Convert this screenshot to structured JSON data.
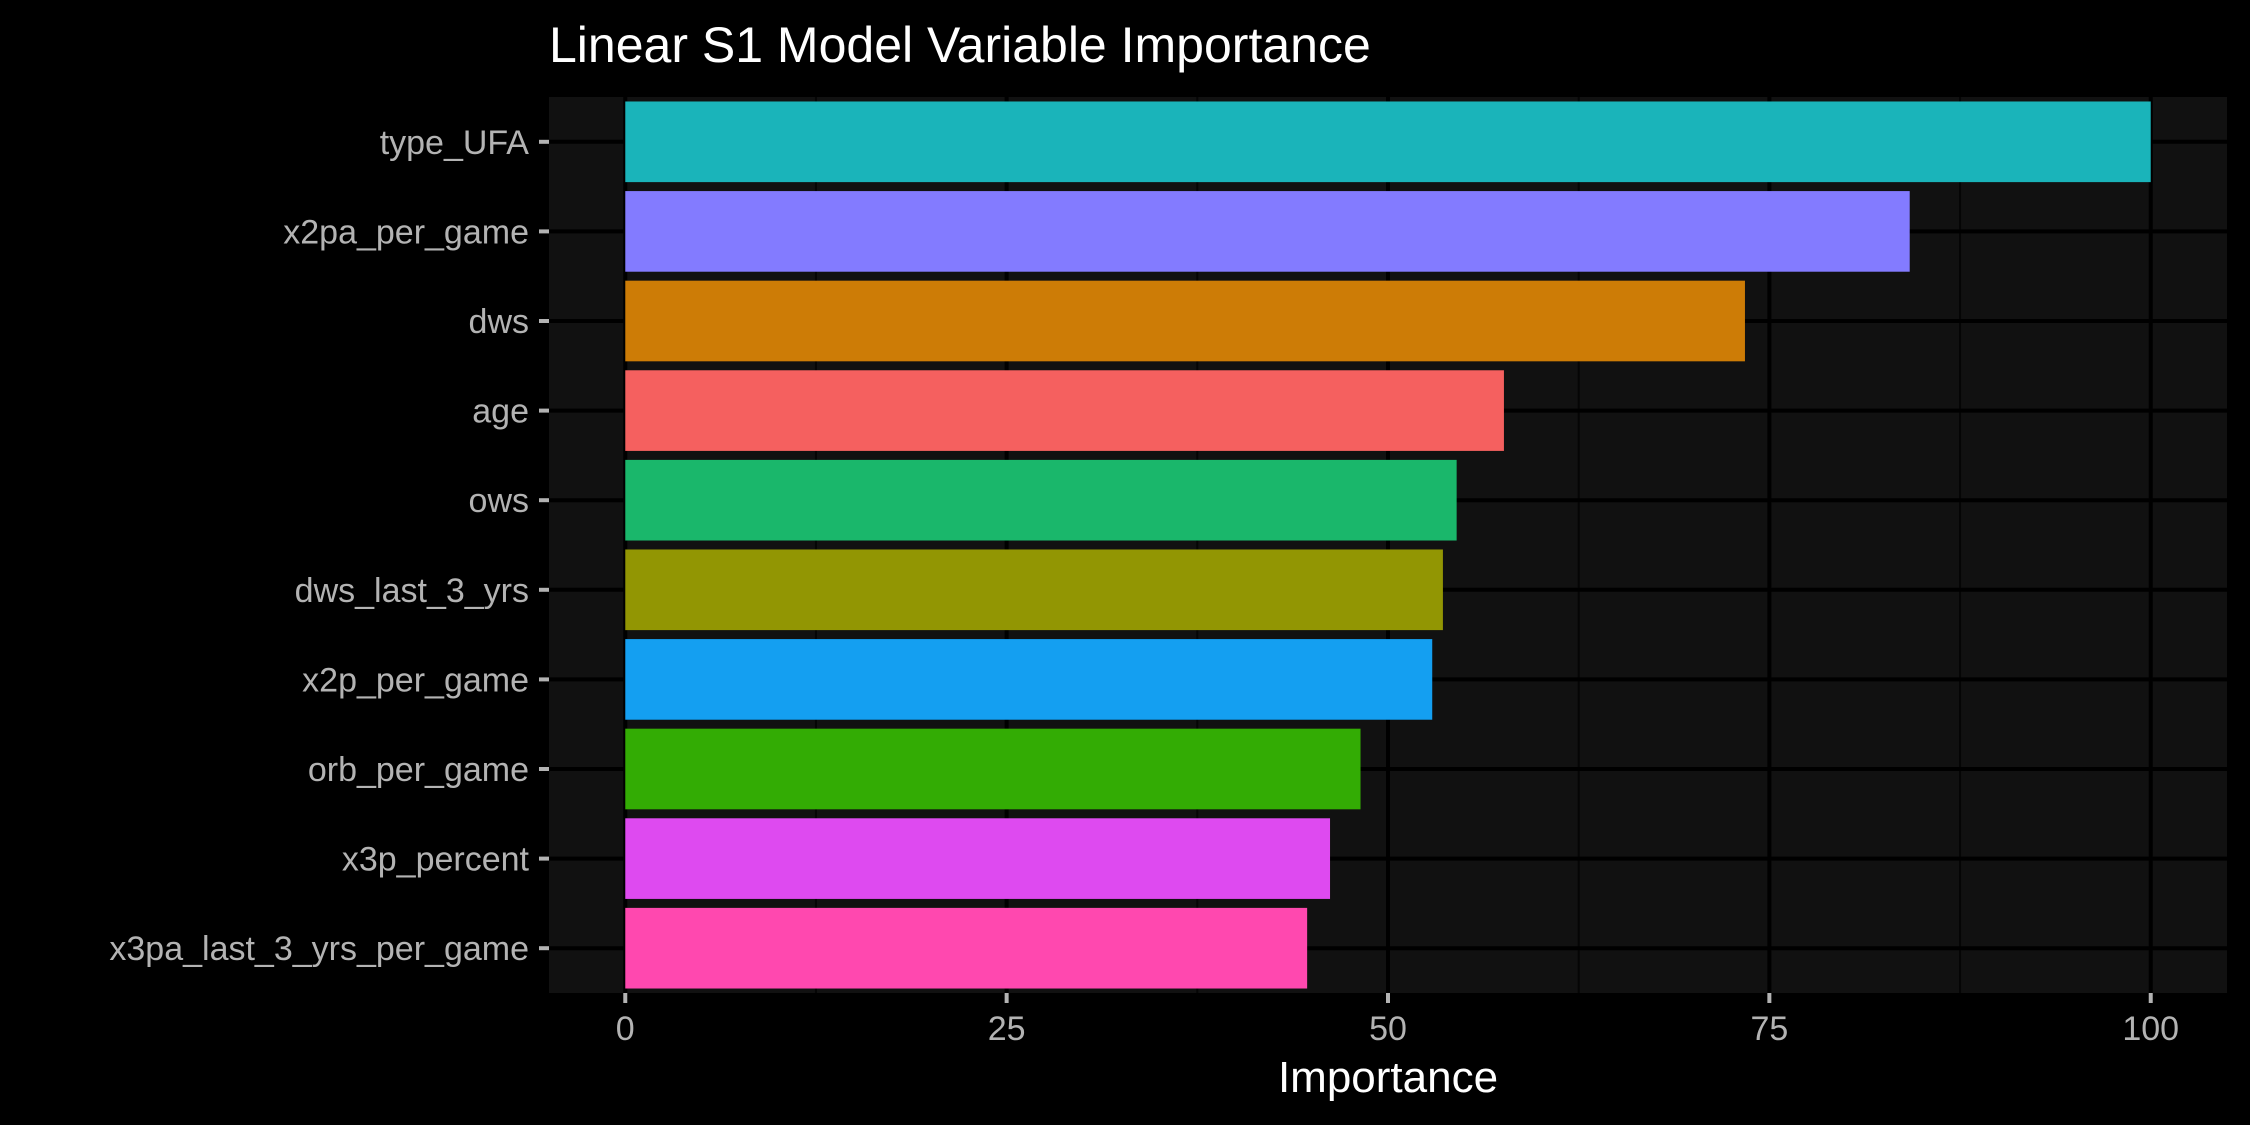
{
  "chart_data": {
    "type": "bar",
    "orientation": "horizontal",
    "title": "Linear S1 Model Variable Importance",
    "xlabel": "Importance",
    "ylabel": "",
    "categories": [
      "type_UFA",
      "x2pa_per_game",
      "dws",
      "age",
      "ows",
      "dws_last_3_yrs",
      "x2p_per_game",
      "orb_per_game",
      "x3p_percent",
      "x3pa_last_3_yrs_per_game"
    ],
    "values": [
      100,
      84.2,
      73.4,
      57.6,
      54.5,
      53.6,
      52.9,
      48.2,
      46.2,
      44.7
    ],
    "colors": [
      "#1AB4BA",
      "#837BFF",
      "#CD7C06",
      "#F5605F",
      "#1AB76B",
      "#929603",
      "#149FF1",
      "#33AC04",
      "#DE4AF0",
      "#FF48AF"
    ],
    "xlim": [
      -5,
      105
    ],
    "xticks": [
      0,
      25,
      50,
      75,
      100
    ],
    "grid": true,
    "legend": "none",
    "theme": {
      "background": "#000000",
      "panel": "#111111",
      "grid_major": "#000000",
      "grid_minor": "#050505",
      "tick_text": "#b3b3b3",
      "title_text": "#ffffff"
    }
  }
}
